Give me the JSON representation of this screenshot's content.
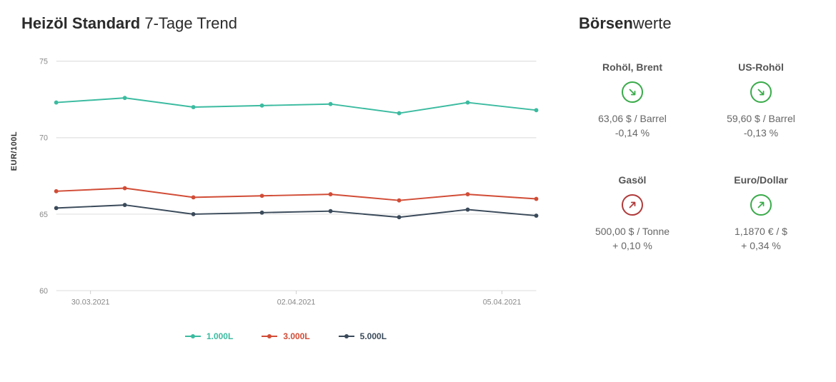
{
  "title_bold": "Heizöl Standard",
  "title_light": " 7-Tage Trend",
  "sidebar_title_bold": "Börsen",
  "sidebar_title_light": "werte",
  "chart": {
    "type": "line",
    "ylabel": "EUR/100L",
    "ylim": [
      60,
      75
    ],
    "ytick_step": 5,
    "yticks": [
      60,
      65,
      70,
      75
    ],
    "xticks": [
      {
        "pos": 0.5,
        "label": "30.03.2021"
      },
      {
        "pos": 3.5,
        "label": "02.04.2021"
      },
      {
        "pos": 6.5,
        "label": "05.04.2021"
      }
    ],
    "x_count": 8,
    "grid_color": "#d9d9d9",
    "axis_color": "#cccccc",
    "background_color": "#ffffff",
    "tick_fontsize": 11,
    "tick_color": "#888888",
    "marker_radius": 3,
    "line_width": 2,
    "series": [
      {
        "label": "1.000L",
        "color": "#3bbba0",
        "values": [
          72.3,
          72.6,
          72.0,
          72.1,
          72.2,
          71.6,
          72.3,
          71.8
        ]
      },
      {
        "label": "3.000L",
        "color": "#d14c36",
        "values": [
          66.5,
          66.7,
          66.1,
          66.2,
          66.3,
          65.9,
          66.3,
          66.0
        ]
      },
      {
        "label": "5.000L",
        "color": "#3a4a5a",
        "values": [
          65.4,
          65.6,
          65.0,
          65.1,
          65.2,
          64.8,
          65.3,
          64.9
        ]
      }
    ]
  },
  "stocks": [
    {
      "name": "Rohöl, Brent",
      "direction": "down",
      "color_up": "#3aab4a",
      "color_down": "#3aab4a",
      "value": "63,06 $ / Barrel",
      "change": "-0,14 %"
    },
    {
      "name": "US-Rohöl",
      "direction": "down",
      "color_up": "#3aab4a",
      "color_down": "#3aab4a",
      "value": "59,60 $ / Barrel",
      "change": "-0,13 %"
    },
    {
      "name": "Gasöl",
      "direction": "up",
      "color_up": "#b03a3a",
      "color_down": "#b03a3a",
      "value": "500,00 $ / Tonne",
      "change": "+ 0,10 %"
    },
    {
      "name": "Euro/Dollar",
      "direction": "up",
      "color_up": "#3aab4a",
      "color_down": "#3aab4a",
      "value": "1,1870 € / $",
      "change": "+ 0,34 %"
    }
  ]
}
